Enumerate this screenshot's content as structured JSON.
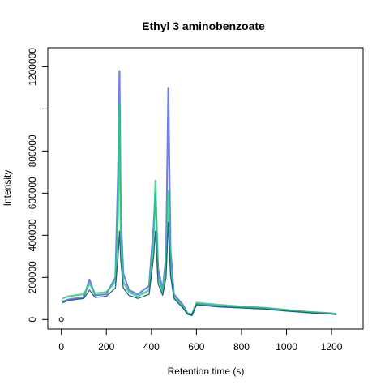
{
  "chart_data": {
    "type": "line",
    "title": "Ethyl 3 aminobenzoate",
    "xlabel": "Retention time (s)",
    "ylabel": "Intensity",
    "xlim": [
      -60,
      1340
    ],
    "ylim": [
      -45000,
      1290000
    ],
    "xticks": [
      0,
      200,
      400,
      600,
      800,
      1000,
      1200
    ],
    "xtick_labels": [
      "0",
      "200",
      "400",
      "600",
      "800",
      "1000",
      "1200"
    ],
    "yticks": [
      0,
      200000,
      400000,
      600000,
      800000,
      1000000,
      1200000
    ],
    "ytick_labels": [
      "0",
      "200000",
      "400000",
      "600000",
      "800000",
      "",
      "1200000"
    ],
    "grid": false,
    "colors": {
      "blue": "#4d5fe6",
      "green": "#1fd075",
      "dark": "#1a4d7a"
    },
    "annotation_point": {
      "x": 0,
      "y": 0,
      "marker": "open-circle"
    },
    "series": [
      {
        "color": "blue",
        "x": [
          5,
          30,
          60,
          100,
          125,
          150,
          200,
          240,
          252,
          258,
          264,
          275,
          300,
          340,
          390,
          410,
          418,
          430,
          450,
          465,
          475,
          485,
          500,
          540,
          560,
          580,
          600,
          700,
          800,
          900,
          1000,
          1100,
          1200,
          1220
        ],
        "y": [
          85000,
          95000,
          100000,
          105000,
          190000,
          115000,
          120000,
          200000,
          700000,
          1180000,
          500000,
          220000,
          140000,
          120000,
          160000,
          450000,
          600000,
          240000,
          140000,
          300000,
          1100000,
          330000,
          120000,
          70000,
          30000,
          20000,
          75000,
          65000,
          60000,
          55000,
          45000,
          35000,
          28000,
          25000
        ]
      },
      {
        "color": "green",
        "x": [
          5,
          30,
          60,
          100,
          125,
          150,
          200,
          240,
          252,
          258,
          264,
          275,
          300,
          340,
          390,
          410,
          418,
          430,
          450,
          465,
          475,
          485,
          500,
          540,
          560,
          580,
          600,
          700,
          800,
          900,
          1000,
          1100,
          1200,
          1220
        ],
        "y": [
          100000,
          110000,
          115000,
          120000,
          170000,
          125000,
          130000,
          180000,
          500000,
          1030000,
          400000,
          180000,
          130000,
          110000,
          140000,
          380000,
          660000,
          200000,
          130000,
          260000,
          610000,
          260000,
          110000,
          60000,
          30000,
          25000,
          80000,
          70000,
          62000,
          56000,
          46000,
          36000,
          30000,
          27000
        ]
      },
      {
        "color": "dark",
        "x": [
          5,
          30,
          60,
          100,
          125,
          150,
          200,
          240,
          252,
          258,
          264,
          275,
          300,
          340,
          390,
          410,
          418,
          430,
          450,
          465,
          475,
          485,
          500,
          540,
          560,
          580,
          600,
          700,
          800,
          900,
          1000,
          1100,
          1200,
          1220
        ],
        "y": [
          80000,
          90000,
          95000,
          100000,
          140000,
          105000,
          110000,
          150000,
          300000,
          420000,
          280000,
          150000,
          115000,
          100000,
          120000,
          300000,
          420000,
          170000,
          115000,
          200000,
          460000,
          210000,
          100000,
          55000,
          25000,
          20000,
          70000,
          60000,
          55000,
          50000,
          40000,
          32000,
          26000,
          24000
        ]
      }
    ]
  }
}
